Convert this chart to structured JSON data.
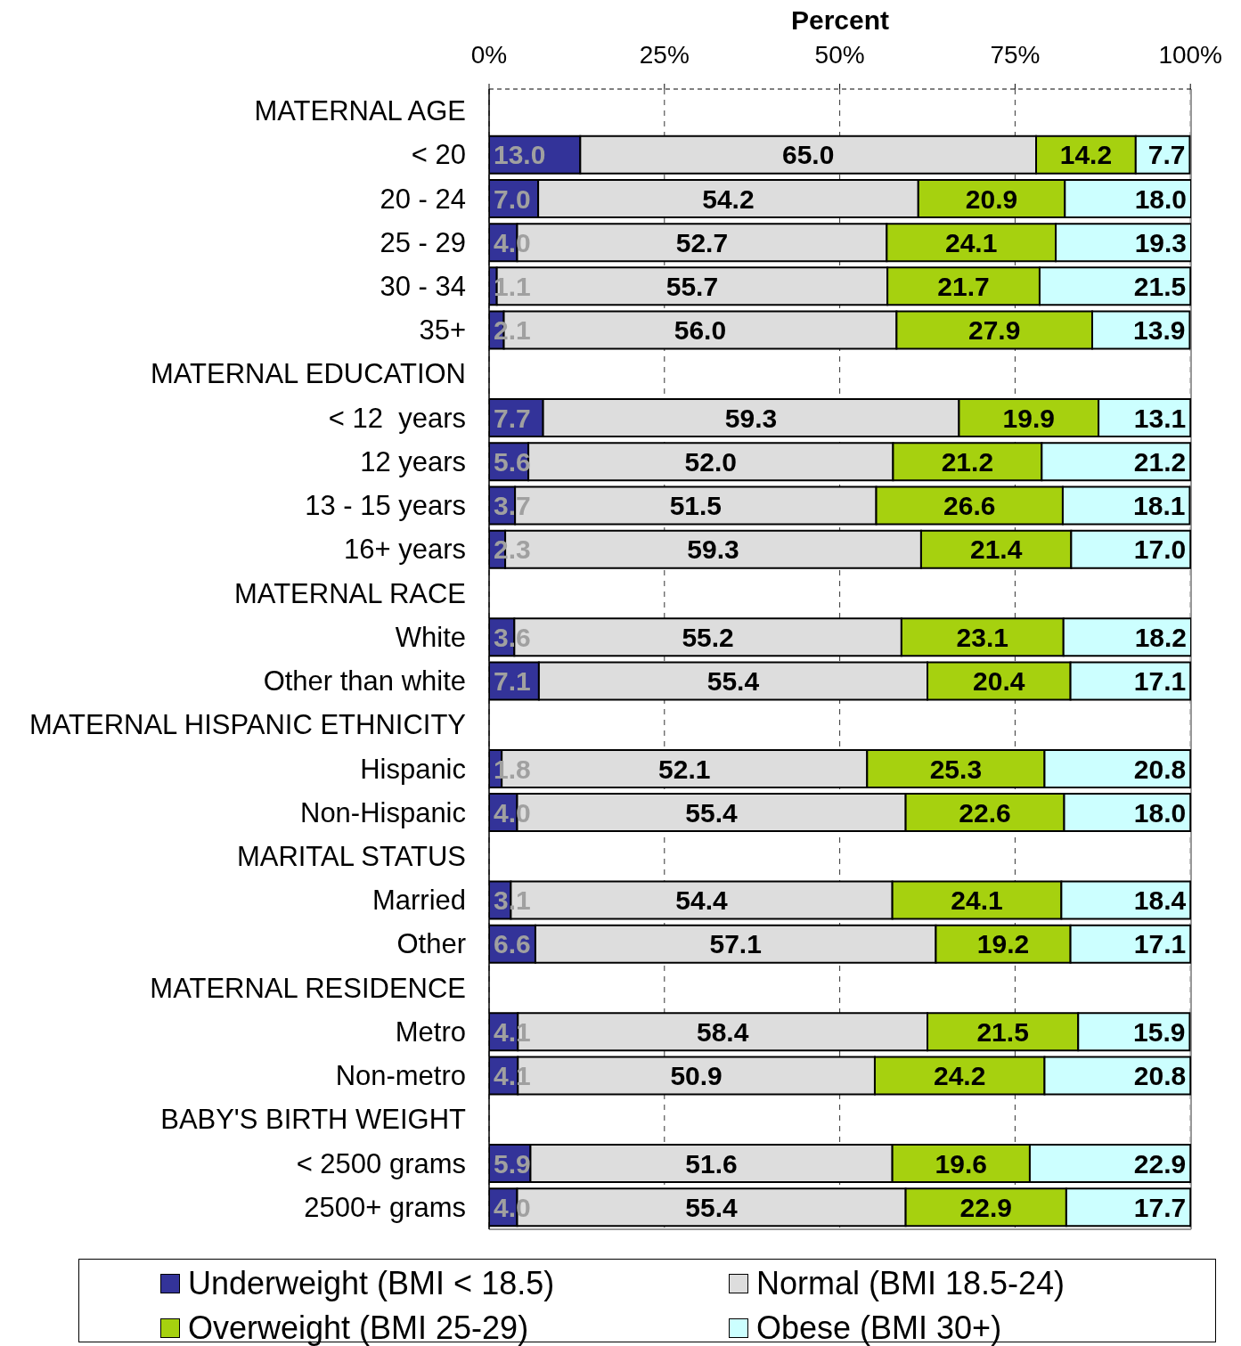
{
  "chart_data": {
    "type": "bar",
    "orientation": "horizontal",
    "stacked": true,
    "xlabel": "Percent",
    "categories": [
      "MATERNAL AGE",
      "< 20",
      "20 - 24",
      "25 - 29",
      "30 - 34",
      "35+",
      "MATERNAL EDUCATION",
      "< 12  years",
      "12 years",
      "13 - 15 years",
      "16+ years",
      "MATERNAL RACE",
      "White",
      "Other than white",
      "MATERNAL HISPANIC ETHNICITY",
      "Hispanic",
      "Non-Hispanic",
      "MARITAL STATUS",
      "Married",
      "Other",
      "MATERNAL RESIDENCE",
      "Metro",
      "Non-metro",
      "BABY'S BIRTH WEIGHT",
      "< 2500 grams",
      "2500+ grams"
    ],
    "series": [
      {
        "name": "Underweight (BMI < 18.5)",
        "color": "#333399",
        "values": [
          null,
          13.0,
          7.0,
          4.0,
          1.1,
          2.1,
          null,
          7.7,
          5.6,
          3.7,
          2.3,
          null,
          3.6,
          7.1,
          null,
          1.8,
          4.0,
          null,
          3.1,
          6.6,
          null,
          4.1,
          4.1,
          null,
          5.9,
          4.0
        ],
        "value_labels": [
          null,
          "13.0",
          "7.0",
          "4.0",
          "1.1",
          "2.1",
          null,
          "7.7",
          "5.6",
          "3.7",
          "2.3",
          null,
          "3.6",
          "7.1",
          null,
          "1.8",
          "4.0",
          null,
          "3.1",
          "6.6",
          null,
          "4.1",
          "4.1",
          null,
          "5.9",
          "4.0"
        ]
      },
      {
        "name": "Normal (BMI 18.5-24)",
        "color": "#dddddd",
        "values": [
          null,
          65.0,
          54.2,
          52.7,
          55.7,
          56.0,
          null,
          59.3,
          52.0,
          51.5,
          59.3,
          null,
          55.2,
          55.4,
          null,
          52.1,
          55.4,
          null,
          54.4,
          57.1,
          null,
          58.4,
          50.9,
          null,
          51.6,
          55.4
        ],
        "value_labels": [
          null,
          "65.0",
          "54.2",
          "52.7",
          "55.7",
          "56.0",
          null,
          "59.3",
          "52.0",
          "51.5",
          "59.3",
          null,
          "55.2",
          "55.4",
          null,
          "52.1",
          "55.4",
          null,
          "54.4",
          "57.1",
          null,
          "58.4",
          "50.9",
          null,
          "51.6",
          "55.4"
        ]
      },
      {
        "name": "Overweight (BMI 25-29)",
        "color": "#a6d10f",
        "values": [
          null,
          14.2,
          20.9,
          24.1,
          21.7,
          27.9,
          null,
          19.9,
          21.2,
          26.6,
          21.4,
          null,
          23.1,
          20.4,
          null,
          25.3,
          22.6,
          null,
          24.1,
          19.2,
          null,
          21.5,
          24.2,
          null,
          19.6,
          22.9
        ],
        "value_labels": [
          null,
          "14.2",
          "20.9",
          "24.1",
          "21.7",
          "27.9",
          null,
          "19.9",
          "21.2",
          "26.6",
          "21.4",
          null,
          "23.1",
          "20.4",
          null,
          "25.3",
          "22.6",
          null,
          "24.1",
          "19.2",
          null,
          "21.5",
          "24.2",
          null,
          "19.6",
          "22.9"
        ]
      },
      {
        "name": "Obese (BMI 30+)",
        "color": "#ccffff",
        "values": [
          null,
          7.7,
          18.0,
          19.3,
          21.5,
          13.9,
          null,
          13.1,
          21.2,
          18.1,
          17.0,
          null,
          18.2,
          17.1,
          null,
          20.8,
          18.0,
          null,
          18.4,
          17.1,
          null,
          15.9,
          20.8,
          null,
          22.9,
          17.7
        ],
        "value_labels": [
          null,
          "7.7",
          "18.0",
          "19.3",
          "21.5",
          "13.9",
          null,
          "13.1",
          "21.2",
          "18.1",
          "17.0",
          null,
          "18.2",
          "17.1",
          null,
          "20.8",
          "18.0",
          null,
          "18.4",
          "17.1",
          null,
          "15.9",
          "20.8",
          null,
          "22.9",
          "17.7"
        ]
      }
    ],
    "xlim": [
      0,
      100.1
    ],
    "xticks": [
      {
        "value": 0,
        "label": "0%"
      },
      {
        "value": 25,
        "label": "25%"
      },
      {
        "value": 50,
        "label": "50%"
      },
      {
        "value": 75,
        "label": "75%"
      },
      {
        "value": 100,
        "label": "100%"
      }
    ],
    "grid": "x",
    "legend": "bottom"
  }
}
